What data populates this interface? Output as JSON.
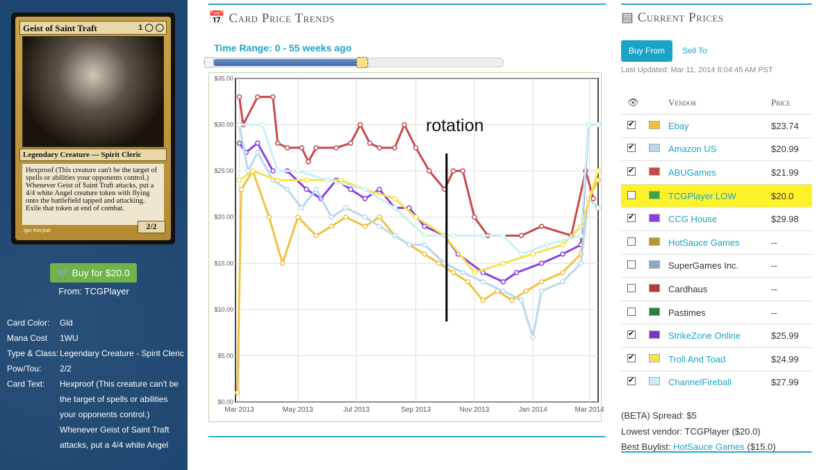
{
  "card": {
    "name": "Geist of Saint Traft",
    "mana_symbols": "1 ◯ ◯",
    "type_line": "Legendary Creature — Spirit Cleric",
    "rules_text_1": "Hexproof (This creature can't be the target of spells or abilities your opponents control.)",
    "rules_text_2": "Whenever Geist of Saint Traft attacks, put a 4/4 white Angel creature token with flying onto the battlefield tapped and attacking. Exile that token at end of combat.",
    "pt": "2/2",
    "artist": "Igor Kieryluk"
  },
  "buy_button": "Buy for $20.0",
  "buy_from": "From: TCGPlayer",
  "info": [
    {
      "k": "Card Color:",
      "v": "Gld"
    },
    {
      "k": "Mana Cost",
      "v": "1WU"
    },
    {
      "k": "Type & Class:",
      "v": "Legendary Creature - Spirit Cleric"
    },
    {
      "k": "Pow/Tou:",
      "v": "2/2"
    },
    {
      "k": "Card Text:",
      "v": "Hexproof (This creature can't be the target of spells or abilities your opponents control.) Whenever Geist of Saint Traft attacks, put a 4/4 white Angel"
    }
  ],
  "trends": {
    "title": "Card Price Trends",
    "icon": "calendar-icon",
    "time_range": "Time Range: 0 - 55 weeks ago",
    "annotation": "rotation"
  },
  "prices": {
    "title": "Current Prices",
    "icon": "money-icon",
    "tab_buy": "Buy From",
    "tab_sell": "Sell To",
    "last_updated": "Last Updated: Mar 11, 2014 8:04:45 AM PST",
    "col_vendor": "Vendor",
    "col_price": "Price",
    "vendors": [
      {
        "name": "Ebay",
        "price": "$23.74",
        "checked": true,
        "color": "#f0c040",
        "linked": true,
        "highlight": false
      },
      {
        "name": "Amazon US",
        "price": "$20.99",
        "checked": true,
        "color": "#b8d8f0",
        "linked": true,
        "highlight": false
      },
      {
        "name": "ABUGames",
        "price": "$21.99",
        "checked": true,
        "color": "#c84848",
        "linked": true,
        "highlight": false
      },
      {
        "name": "TCGPlayer LOW",
        "price": "$20.0",
        "checked": false,
        "color": "#3aa840",
        "linked": true,
        "highlight": true
      },
      {
        "name": "CCG House",
        "price": "$29.98",
        "checked": true,
        "color": "#8a3ee0",
        "linked": true,
        "highlight": false
      },
      {
        "name": "HotSauce Games",
        "price": "--",
        "checked": false,
        "color": "#b8962e",
        "linked": true,
        "highlight": false
      },
      {
        "name": "SuperGames Inc.",
        "price": "--",
        "checked": false,
        "color": "#8fa8c8",
        "linked": false,
        "highlight": false
      },
      {
        "name": "Cardhaus",
        "price": "--",
        "checked": false,
        "color": "#b83838",
        "linked": false,
        "highlight": false
      },
      {
        "name": "Pastimes",
        "price": "--",
        "checked": false,
        "color": "#2e7d3a",
        "linked": false,
        "highlight": false
      },
      {
        "name": "StrikeZone Online",
        "price": "$25.99",
        "checked": true,
        "color": "#7a32c8",
        "linked": true,
        "highlight": false
      },
      {
        "name": "Troll And Toad",
        "price": "$24.99",
        "checked": true,
        "color": "#f8e050",
        "linked": true,
        "highlight": false
      },
      {
        "name": "ChannelFireball",
        "price": "$27.99",
        "checked": true,
        "color": "#c8f0f8",
        "linked": true,
        "highlight": false
      }
    ],
    "spread": "(BETA) Spread: $5",
    "lowest_vendor": "Lowest vendor: TCGPlayer ($20.0)",
    "best_buylist_label": "Best Buylist: ",
    "best_buylist_vendor": "HotSauce Games",
    "best_buylist_price": " ($15.0)"
  },
  "chart_data": {
    "type": "line",
    "title": "",
    "xlabel": "",
    "ylabel": "",
    "x_ticks": [
      "Mar 2013",
      "May 2013",
      "Jul 2013",
      "Sep 2013",
      "Nov 2013",
      "Jan 2014",
      "Mar 2014"
    ],
    "y_ticks": [
      "$0.00",
      "$5.00",
      "$10.00",
      "$15.00",
      "$20.00",
      "$25.00",
      "$30.00",
      "$35.00"
    ],
    "ylim": [
      0,
      35
    ],
    "xlim": [
      "2013-02-25",
      "2014-03-10"
    ],
    "grid": true,
    "series": [
      {
        "color": "#c84848",
        "points": [
          [
            "2013-03-01",
            33
          ],
          [
            "2013-03-05",
            30
          ],
          [
            "2013-03-20",
            33
          ],
          [
            "2013-04-05",
            33
          ],
          [
            "2013-04-10",
            28
          ],
          [
            "2013-04-20",
            27.5
          ],
          [
            "2013-05-05",
            27.5
          ],
          [
            "2013-05-12",
            26
          ],
          [
            "2013-05-20",
            27.5
          ],
          [
            "2013-06-10",
            27.5
          ],
          [
            "2013-06-25",
            28
          ],
          [
            "2013-07-05",
            30
          ],
          [
            "2013-07-15",
            28
          ],
          [
            "2013-07-25",
            27.5
          ],
          [
            "2013-08-10",
            27.5
          ],
          [
            "2013-08-20",
            30
          ],
          [
            "2013-09-01",
            27.5
          ],
          [
            "2013-09-15",
            25
          ],
          [
            "2013-10-01",
            23
          ],
          [
            "2013-10-10",
            25
          ],
          [
            "2013-10-20",
            25
          ],
          [
            "2013-11-01",
            20
          ],
          [
            "2013-11-15",
            18
          ],
          [
            "2013-12-20",
            18
          ],
          [
            "2014-01-10",
            19
          ],
          [
            "2014-02-10",
            18
          ],
          [
            "2014-02-25",
            25
          ],
          [
            "2014-03-05",
            22
          ]
        ]
      },
      {
        "color": "#8a3ee0",
        "points": [
          [
            "2013-03-01",
            28
          ],
          [
            "2013-03-08",
            27
          ],
          [
            "2013-03-20",
            28
          ],
          [
            "2013-04-05",
            25
          ],
          [
            "2013-04-20",
            25
          ],
          [
            "2013-05-10",
            23
          ],
          [
            "2013-05-25",
            22
          ],
          [
            "2013-06-10",
            24
          ],
          [
            "2013-06-25",
            23
          ],
          [
            "2013-07-10",
            22
          ],
          [
            "2013-07-25",
            23
          ],
          [
            "2013-08-10",
            21
          ],
          [
            "2013-08-25",
            21
          ],
          [
            "2013-09-10",
            19
          ],
          [
            "2013-10-01",
            18
          ],
          [
            "2013-10-15",
            16
          ],
          [
            "2013-11-10",
            14
          ],
          [
            "2013-12-01",
            13
          ],
          [
            "2013-12-15",
            14
          ],
          [
            "2014-01-10",
            15
          ],
          [
            "2014-02-01",
            16
          ],
          [
            "2014-02-20",
            17
          ],
          [
            "2014-02-28",
            30
          ],
          [
            "2014-03-10",
            30
          ]
        ]
      },
      {
        "color": "#f0c040",
        "points": [
          [
            "2013-02-27",
            1
          ],
          [
            "2013-03-03",
            23
          ],
          [
            "2013-03-15",
            25
          ],
          [
            "2013-04-01",
            20
          ],
          [
            "2013-04-15",
            15
          ],
          [
            "2013-05-01",
            20
          ],
          [
            "2013-05-20",
            18
          ],
          [
            "2013-06-05",
            19
          ],
          [
            "2013-06-20",
            20
          ],
          [
            "2013-07-10",
            19
          ],
          [
            "2013-07-25",
            20
          ],
          [
            "2013-08-10",
            18
          ],
          [
            "2013-08-25",
            17
          ],
          [
            "2013-09-10",
            16
          ],
          [
            "2013-09-25",
            15
          ],
          [
            "2013-10-10",
            14
          ],
          [
            "2013-10-25",
            13
          ],
          [
            "2013-11-10",
            11
          ],
          [
            "2013-11-25",
            12
          ],
          [
            "2013-12-10",
            11
          ],
          [
            "2013-12-25",
            12
          ],
          [
            "2014-01-10",
            13
          ],
          [
            "2014-02-01",
            14
          ],
          [
            "2014-02-20",
            16
          ],
          [
            "2014-02-28",
            22
          ],
          [
            "2014-03-10",
            24
          ]
        ]
      },
      {
        "color": "#b8d8f0",
        "points": [
          [
            "2013-03-01",
            30
          ],
          [
            "2013-03-10",
            25
          ],
          [
            "2013-03-20",
            27
          ],
          [
            "2013-04-05",
            24
          ],
          [
            "2013-04-20",
            23
          ],
          [
            "2013-05-05",
            21
          ],
          [
            "2013-05-20",
            23
          ],
          [
            "2013-06-05",
            20
          ],
          [
            "2013-06-20",
            21
          ],
          [
            "2013-07-10",
            20
          ],
          [
            "2013-07-25",
            19
          ],
          [
            "2013-08-10",
            18
          ],
          [
            "2013-08-25",
            17
          ],
          [
            "2013-09-10",
            17
          ],
          [
            "2013-10-01",
            15
          ],
          [
            "2013-10-20",
            14
          ],
          [
            "2013-11-10",
            13
          ],
          [
            "2013-12-01",
            12
          ],
          [
            "2013-12-20",
            11
          ],
          [
            "2014-01-01",
            7
          ],
          [
            "2014-01-10",
            12
          ],
          [
            "2014-02-01",
            13
          ],
          [
            "2014-02-20",
            15
          ],
          [
            "2014-02-28",
            22
          ],
          [
            "2014-03-10",
            21
          ]
        ]
      },
      {
        "color": "#f8e050",
        "points": [
          [
            "2013-03-01",
            24
          ],
          [
            "2013-03-15",
            25
          ],
          [
            "2013-04-10",
            24
          ],
          [
            "2013-05-10",
            24
          ],
          [
            "2013-06-15",
            24
          ],
          [
            "2013-07-10",
            23
          ],
          [
            "2013-08-10",
            22
          ],
          [
            "2013-09-01",
            20
          ],
          [
            "2013-10-01",
            18
          ],
          [
            "2013-11-01",
            14
          ],
          [
            "2013-12-01",
            15
          ],
          [
            "2014-01-01",
            16
          ],
          [
            "2014-02-01",
            17
          ],
          [
            "2014-02-20",
            19
          ],
          [
            "2014-03-10",
            25
          ]
        ]
      },
      {
        "color": "#c8f0f8",
        "points": [
          [
            "2013-03-01",
            30
          ],
          [
            "2013-03-25",
            30
          ],
          [
            "2013-04-10",
            25
          ],
          [
            "2013-05-01",
            25
          ],
          [
            "2013-06-01",
            24
          ],
          [
            "2013-07-10",
            23
          ],
          [
            "2013-08-10",
            21
          ],
          [
            "2013-09-10",
            18
          ],
          [
            "2013-10-10",
            18
          ],
          [
            "2013-11-10",
            18
          ],
          [
            "2013-12-01",
            18
          ],
          [
            "2013-12-20",
            16
          ],
          [
            "2014-01-15",
            17
          ],
          [
            "2014-02-20",
            18
          ],
          [
            "2014-02-28",
            30
          ],
          [
            "2014-03-10",
            30
          ]
        ]
      }
    ]
  }
}
